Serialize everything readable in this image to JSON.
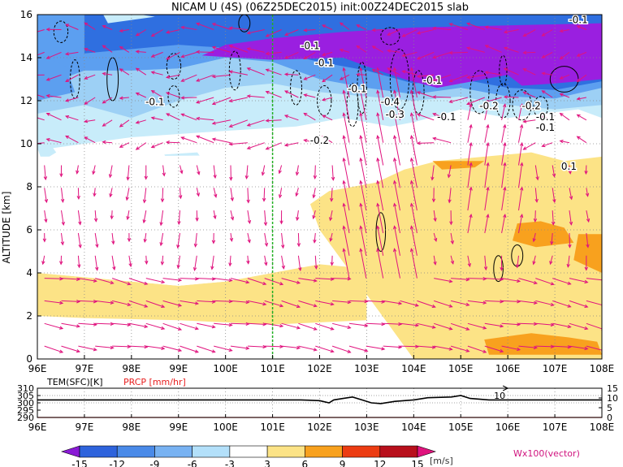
{
  "chart_data": [
    {
      "type": "heatmap",
      "title": "NICAM U (4S) (06Z25DEC2015) init:00Z24DEC2015 slab",
      "xlabel": "",
      "ylabel": "ALTITUDE [km]",
      "x_ticks": [
        "96E",
        "97E",
        "98E",
        "99E",
        "100E",
        "101E",
        "102E",
        "103E",
        "104E",
        "105E",
        "106E",
        "107E",
        "108E"
      ],
      "y_ticks": [
        "0",
        "2",
        "4",
        "6",
        "8",
        "10",
        "12",
        "14",
        "16"
      ],
      "xlim": [
        96,
        108
      ],
      "ylim": [
        0,
        16
      ],
      "grid": true,
      "reference_line_x": 101,
      "colors": {
        "purple": "#9a1fe0",
        "blue": "#2f6fe0",
        "mid_blue": "#5c9ff0",
        "light_blue": "#9dd0f5",
        "cyan": "#c8ecfa",
        "yellow": "#fce386",
        "orange": "#f8a11e",
        "dark_orange": "#f07a10",
        "arrow": "#e0137e",
        "ref_line": "#22b022"
      },
      "colorbar": {
        "ticks": [
          "-15",
          "-12",
          "-9",
          "-6",
          "-3",
          "3",
          "6",
          "9",
          "12",
          "15"
        ],
        "unit": "[m/s]",
        "vector_note": "Wx100(vector)",
        "colors": [
          "#8a1ad6",
          "#2e63dc",
          "#4a8ae8",
          "#78b2f2",
          "#b3e0fa",
          "#ffffff",
          "#fce386",
          "#f8a11e",
          "#ec3c12",
          "#b8101c",
          "#e0137e"
        ]
      },
      "contour_labels": [
        "-0.1",
        "-0.1",
        "-0.2",
        "-0.1",
        "-0.1",
        "-0.1",
        "-0.4",
        "-0.3",
        "-0.1",
        "-0.2",
        "-0.2",
        "-0.1",
        "-0.1",
        "-0.1",
        "0.1",
        "0.1"
      ]
    },
    {
      "type": "line",
      "series": [
        {
          "name": "TEM(SFC)[K]",
          "x": [
            96,
            100,
            101,
            101.6,
            102,
            102.2,
            102.3,
            102.5,
            102.7,
            102.9,
            103.1,
            103.3,
            103.6,
            104,
            104.3,
            104.8,
            105,
            105.2,
            105.6,
            106,
            108
          ],
          "y": [
            302,
            302,
            302,
            302,
            301.5,
            300,
            302,
            303,
            304,
            302,
            300,
            299.5,
            301,
            302,
            303.5,
            304,
            305,
            303,
            302,
            302,
            302
          ]
        },
        {
          "name": "PRCP [mm/hr]",
          "x": [
            96,
            108
          ],
          "y": [
            0,
            0
          ]
        }
      ],
      "left_axis_ticks": [
        "310",
        "305",
        "300",
        "295",
        "290"
      ],
      "right_axis_ticks": [
        "15",
        "10",
        "5",
        "0"
      ],
      "annotation": "10",
      "x_ticks": [
        "96E",
        "97E",
        "98E",
        "99E",
        "100E",
        "101E",
        "102E",
        "103E",
        "104E",
        "105E",
        "106E",
        "107E",
        "108E"
      ]
    }
  ]
}
